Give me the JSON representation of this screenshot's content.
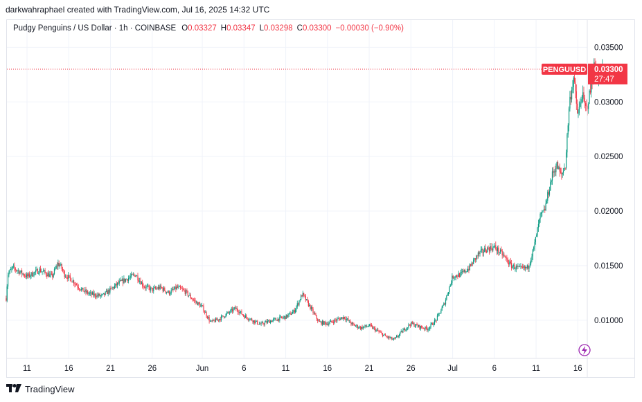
{
  "caption": "darkwahraphael created with TradingView.com, Jul 16, 2025 14:32 UTC",
  "legend": {
    "symbol": "Pudgy Penguins / US Dollar · 1h · COINBASE",
    "o_label": "O",
    "o_value": "0.03327",
    "h_label": "H",
    "h_value": "0.03347",
    "l_label": "L",
    "l_value": "0.03298",
    "c_label": "C",
    "c_value": "0.03300",
    "change": "−0.00030 (−0.90%)"
  },
  "price_tag": {
    "ticker": "PENGUUSD",
    "price": "0.03300",
    "countdown": "27:47"
  },
  "brand": {
    "name": "TradingView",
    "logo_icon": "tradingview-logo-icon"
  },
  "colors": {
    "up": "#089981",
    "down": "#f23645",
    "grid": "#f0f3fa",
    "text": "#131722"
  },
  "chart_data": {
    "type": "candlestick",
    "symbol": "PENGUUSD",
    "interval": "1h",
    "ylim": [
      0.0065,
      0.0375
    ],
    "y_ticks": [
      {
        "value": 0.035,
        "label": "0.03500"
      },
      {
        "value": 0.03,
        "label": "0.03000"
      },
      {
        "value": 0.025,
        "label": "0.02500"
      },
      {
        "value": 0.02,
        "label": "0.02000"
      },
      {
        "value": 0.015,
        "label": "0.01500"
      },
      {
        "value": 0.01,
        "label": "0.01000"
      }
    ],
    "x_ticks": [
      {
        "label": "11",
        "day": 0
      },
      {
        "label": "16",
        "day": 5
      },
      {
        "label": "21",
        "day": 10
      },
      {
        "label": "26",
        "day": 15
      },
      {
        "label": "Jun",
        "day": 21
      },
      {
        "label": "6",
        "day": 26
      },
      {
        "label": "11",
        "day": 31
      },
      {
        "label": "16",
        "day": 36
      },
      {
        "label": "21",
        "day": 41
      },
      {
        "label": "26",
        "day": 46
      },
      {
        "label": "Jul",
        "day": 51
      },
      {
        "label": "6",
        "day": 56
      },
      {
        "label": "11",
        "day": 61
      },
      {
        "label": "16",
        "day": 66
      }
    ],
    "last_price": 0.033,
    "price_path": [
      [
        -2.5,
        0.012
      ],
      [
        -2.3,
        0.0142
      ],
      [
        -1.7,
        0.0148
      ],
      [
        -1.0,
        0.0145
      ],
      [
        0,
        0.014
      ],
      [
        1.5,
        0.0146
      ],
      [
        3.0,
        0.014
      ],
      [
        3.7,
        0.0152
      ],
      [
        4.0,
        0.015
      ],
      [
        4.5,
        0.0142
      ],
      [
        5.5,
        0.0136
      ],
      [
        6.5,
        0.0128
      ],
      [
        7.5,
        0.0124
      ],
      [
        9,
        0.0122
      ],
      [
        10,
        0.0128
      ],
      [
        11,
        0.0134
      ],
      [
        12,
        0.0138
      ],
      [
        13,
        0.0142
      ],
      [
        14,
        0.0131
      ],
      [
        15,
        0.0128
      ],
      [
        16,
        0.013
      ],
      [
        17,
        0.0125
      ],
      [
        18,
        0.013
      ],
      [
        19,
        0.0126
      ],
      [
        20,
        0.0118
      ],
      [
        21,
        0.0112
      ],
      [
        22,
        0.0098
      ],
      [
        23,
        0.0101
      ],
      [
        24,
        0.0106
      ],
      [
        25,
        0.0111
      ],
      [
        26,
        0.0104
      ],
      [
        27,
        0.01
      ],
      [
        28,
        0.0096
      ],
      [
        29,
        0.0099
      ],
      [
        30,
        0.0101
      ],
      [
        31,
        0.0103
      ],
      [
        32,
        0.0108
      ],
      [
        33,
        0.0124
      ],
      [
        34,
        0.0111
      ],
      [
        35,
        0.0098
      ],
      [
        36,
        0.0097
      ],
      [
        37,
        0.01
      ],
      [
        38,
        0.0103
      ],
      [
        39,
        0.0096
      ],
      [
        40,
        0.0093
      ],
      [
        41,
        0.0095
      ],
      [
        42,
        0.009
      ],
      [
        43,
        0.0085
      ],
      [
        44,
        0.0082
      ],
      [
        45,
        0.009
      ],
      [
        46,
        0.0097
      ],
      [
        47,
        0.0094
      ],
      [
        48,
        0.0092
      ],
      [
        49,
        0.01
      ],
      [
        50,
        0.0115
      ],
      [
        51,
        0.014
      ],
      [
        52,
        0.0142
      ],
      [
        53,
        0.0148
      ],
      [
        54,
        0.016
      ],
      [
        55,
        0.0165
      ],
      [
        56,
        0.0167
      ],
      [
        57,
        0.016
      ],
      [
        58,
        0.015
      ],
      [
        59,
        0.0147
      ],
      [
        60,
        0.0148
      ],
      [
        60.7,
        0.0165
      ],
      [
        61.5,
        0.0195
      ],
      [
        62,
        0.02
      ],
      [
        62.5,
        0.0218
      ],
      [
        63,
        0.0235
      ],
      [
        63.5,
        0.0242
      ],
      [
        64,
        0.0232
      ],
      [
        64.5,
        0.0242
      ],
      [
        65,
        0.03
      ],
      [
        65.5,
        0.0322
      ],
      [
        66,
        0.0286
      ],
      [
        66.5,
        0.0307
      ],
      [
        67,
        0.0292
      ],
      [
        67.5,
        0.031
      ],
      [
        68,
        0.0335
      ],
      [
        68.5,
        0.0322
      ],
      [
        69,
        0.033
      ]
    ]
  }
}
